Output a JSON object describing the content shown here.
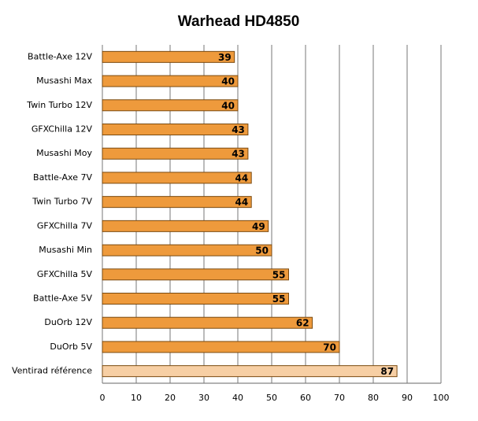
{
  "chart_data": {
    "type": "hbar",
    "title": "Warhead HD4850",
    "categories": [
      "Battle-Axe 12V",
      "Musashi Max",
      "Twin Turbo 12V",
      "GFXChilla 12V",
      "Musashi Moy",
      "Battle-Axe 7V",
      "Twin Turbo 7V",
      "GFXChilla 7V",
      "Musashi Min",
      "GFXChilla 5V",
      "Battle-Axe 5V",
      "DuOrb 12V",
      "DuOrb 5V",
      "Ventirad référence"
    ],
    "values": [
      39,
      40,
      40,
      43,
      43,
      44,
      44,
      49,
      50,
      55,
      55,
      62,
      70,
      87
    ],
    "colors": [
      "#ee9a3c",
      "#ee9a3c",
      "#ee9a3c",
      "#ee9a3c",
      "#ee9a3c",
      "#ee9a3c",
      "#ee9a3c",
      "#ee9a3c",
      "#ee9a3c",
      "#ee9a3c",
      "#ee9a3c",
      "#ee9a3c",
      "#ee9a3c",
      "#f7cfa4"
    ],
    "xlim": [
      0,
      100
    ],
    "xticks": [
      0,
      10,
      20,
      30,
      40,
      50,
      60,
      70,
      80,
      90,
      100
    ],
    "grid": true
  }
}
